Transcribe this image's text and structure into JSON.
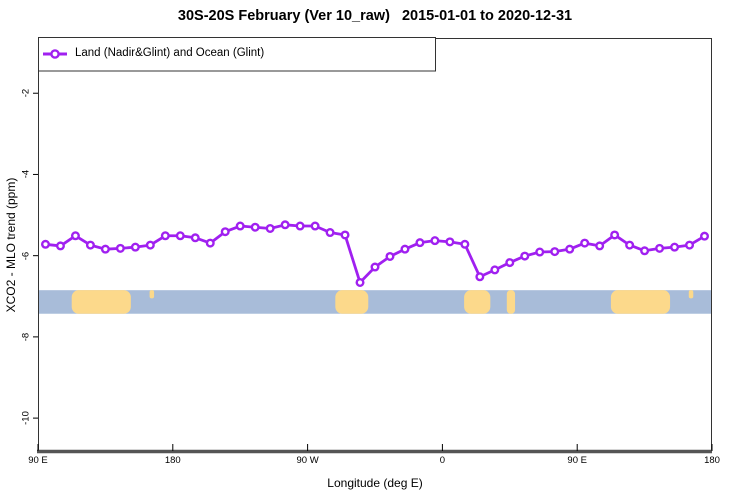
{
  "title": "30S-20S February (Ver 10_raw)   2015-01-01 to 2020-12-31",
  "legend": {
    "label": "Land (Nadir&Glint) and Ocean (Glint)"
  },
  "colors": {
    "series": "#a020f0",
    "marker_fill": "#ffffff",
    "ocean": "#a8bcd9",
    "land": "#fcd98b",
    "axis_line": "#555555",
    "box_line": "#333333",
    "text": "#000000"
  },
  "chart_data": {
    "type": "line",
    "title": "30S-20S February (Ver 10_raw)   2015-01-01 to 2020-12-31",
    "xlabel": "Longitude (deg E)",
    "ylabel": "XCO2 - MLO trend (ppm)",
    "xlim": [
      90,
      540
    ],
    "ylim": [
      -10.81,
      -0.64
    ],
    "grid": false,
    "legend_position": "top-left",
    "x_ticks": [
      {
        "lon": 90,
        "label": "90 E"
      },
      {
        "lon": 180,
        "label": "180"
      },
      {
        "lon": 270,
        "label": "90 W"
      },
      {
        "lon": 360,
        "label": "0"
      },
      {
        "lon": 450,
        "label": "90 E"
      },
      {
        "lon": 540,
        "label": "180"
      }
    ],
    "y_ticks": [
      {
        "v": -2,
        "label": "-2"
      },
      {
        "v": -4,
        "label": "-4"
      },
      {
        "v": -6,
        "label": "-6"
      },
      {
        "v": -8,
        "label": "-8"
      },
      {
        "v": -10,
        "label": "-10"
      }
    ],
    "series": [
      {
        "name": "Land (Nadir&Glint) and Ocean (Glint)",
        "marker": "open-circle",
        "x": [
          95,
          105,
          115,
          125,
          135,
          145,
          155,
          165,
          175,
          185,
          195,
          205,
          215,
          225,
          235,
          245,
          255,
          265,
          275,
          285,
          295,
          305,
          315,
          325,
          335,
          345,
          355,
          365,
          375,
          385,
          395,
          405,
          415,
          425,
          435,
          445,
          455,
          465,
          475,
          485,
          495,
          505,
          515,
          525,
          535
        ],
        "y": [
          -5.72,
          -5.76,
          -5.51,
          -5.74,
          -5.84,
          -5.82,
          -5.79,
          -5.74,
          -5.51,
          -5.51,
          -5.56,
          -5.69,
          -5.41,
          -5.27,
          -5.3,
          -5.33,
          -5.24,
          -5.27,
          -5.27,
          -5.43,
          -5.49,
          -6.66,
          -6.28,
          -6.02,
          -5.84,
          -5.68,
          -5.63,
          -5.66,
          -5.72,
          -6.52,
          -6.35,
          -6.17,
          -6.01,
          -5.91,
          -5.9,
          -5.84,
          -5.69,
          -5.76,
          -5.49,
          -5.74,
          -5.88,
          -5.82,
          -5.79,
          -5.74,
          -5.52
        ]
      }
    ],
    "map_strip": {
      "description": "land-ocean strip for 30S-20S latitude band",
      "v_top": -6.85,
      "v_bottom": -7.43,
      "land_patches": [
        {
          "name": "australia",
          "lon": [
            112.5,
            152
          ],
          "partial": "full"
        },
        {
          "name": "new-caledonia",
          "lon": [
            164.5,
            167.5
          ],
          "partial": "top"
        },
        {
          "name": "south-america",
          "lon": [
            288.5,
            310.5
          ],
          "partial": "full"
        },
        {
          "name": "africa",
          "lon": [
            374.5,
            392
          ],
          "partial": "full"
        },
        {
          "name": "madagascar",
          "lon": [
            403,
            408.5
          ],
          "partial": "full"
        },
        {
          "name": "australia-wrap",
          "lon": [
            472.5,
            512
          ],
          "partial": "full"
        },
        {
          "name": "new-caledonia-wrap",
          "lon": [
            524.5,
            527.5
          ],
          "partial": "top"
        }
      ]
    }
  }
}
